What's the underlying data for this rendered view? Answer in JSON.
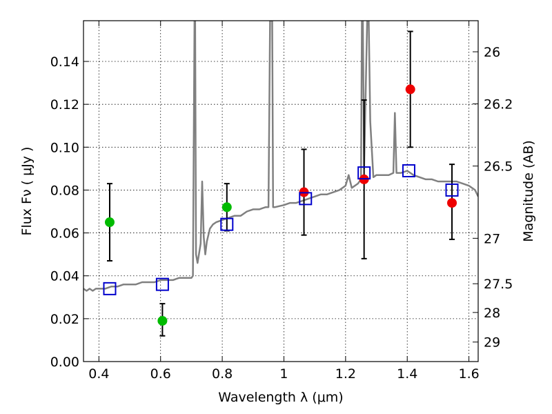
{
  "chart_data": {
    "type": "scatter",
    "title": "",
    "xlabel": "Wavelength  λ (μm)",
    "ylabel": "Flux  Fν  ( μJy )",
    "ylabel_right": "Magnitude (AB)",
    "xlim": [
      0.35,
      1.63
    ],
    "ylim": [
      0.0,
      0.159
    ],
    "grid": true,
    "xticks": [
      0.4,
      0.6,
      0.8,
      1.0,
      1.2,
      1.4,
      1.6
    ],
    "xtick_labels": [
      "0.4",
      "0.6",
      "0.8",
      "1",
      "1.2",
      "1.4",
      "1.6"
    ],
    "yticks": [
      0.0,
      0.02,
      0.04,
      0.06,
      0.08,
      0.1,
      0.12,
      0.14
    ],
    "ytick_labels": [
      "0.00",
      "0.02",
      "0.04",
      "0.06",
      "0.08",
      "0.10",
      "0.12",
      "0.14"
    ],
    "right_ticks": [
      {
        "label": "26",
        "flux": 0.1445
      },
      {
        "label": "26.2",
        "flux": 0.1202
      },
      {
        "label": "26.5",
        "flux": 0.0912
      },
      {
        "label": "27",
        "flux": 0.0575
      },
      {
        "label": "27.5",
        "flux": 0.0363
      },
      {
        "label": "28",
        "flux": 0.0229
      },
      {
        "label": "29",
        "flux": 0.0091
      }
    ],
    "series": [
      {
        "color": "#808080",
        "marker": "line",
        "x": [
          0.35,
          0.36,
          0.37,
          0.38,
          0.39,
          0.4,
          0.42,
          0.44,
          0.46,
          0.48,
          0.5,
          0.52,
          0.54,
          0.56,
          0.58,
          0.6,
          0.62,
          0.64,
          0.66,
          0.68,
          0.7,
          0.705,
          0.71,
          0.712,
          0.715,
          0.72,
          0.73,
          0.735,
          0.74,
          0.745,
          0.75,
          0.76,
          0.77,
          0.78,
          0.8,
          0.82,
          0.84,
          0.86,
          0.88,
          0.9,
          0.92,
          0.94,
          0.95,
          0.955,
          0.96,
          0.962,
          0.965,
          0.97,
          1.0,
          1.02,
          1.04,
          1.06,
          1.08,
          1.1,
          1.12,
          1.14,
          1.16,
          1.18,
          1.2,
          1.21,
          1.22,
          1.24,
          1.25,
          1.253,
          1.256,
          1.26,
          1.27,
          1.275,
          1.28,
          1.29,
          1.3,
          1.32,
          1.34,
          1.355,
          1.36,
          1.365,
          1.38,
          1.4,
          1.42,
          1.44,
          1.46,
          1.48,
          1.5,
          1.52,
          1.54,
          1.56,
          1.58,
          1.6,
          1.62,
          1.63
        ],
        "y": [
          0.034,
          0.033,
          0.034,
          0.033,
          0.034,
          0.034,
          0.034,
          0.035,
          0.035,
          0.036,
          0.036,
          0.036,
          0.037,
          0.037,
          0.037,
          0.038,
          0.038,
          0.038,
          0.039,
          0.039,
          0.039,
          0.04,
          0.159,
          0.159,
          0.05,
          0.046,
          0.055,
          0.084,
          0.058,
          0.05,
          0.056,
          0.062,
          0.064,
          0.065,
          0.066,
          0.067,
          0.068,
          0.068,
          0.07,
          0.071,
          0.071,
          0.072,
          0.072,
          0.159,
          0.159,
          0.159,
          0.072,
          0.072,
          0.073,
          0.074,
          0.074,
          0.075,
          0.076,
          0.077,
          0.078,
          0.078,
          0.079,
          0.08,
          0.082,
          0.087,
          0.081,
          0.083,
          0.085,
          0.159,
          0.159,
          0.09,
          0.159,
          0.159,
          0.112,
          0.086,
          0.087,
          0.087,
          0.087,
          0.088,
          0.116,
          0.088,
          0.088,
          0.089,
          0.087,
          0.086,
          0.085,
          0.085,
          0.084,
          0.084,
          0.084,
          0.084,
          0.083,
          0.082,
          0.08,
          0.077
        ]
      },
      {
        "color": "#00bb00",
        "marker": "circle",
        "x": [
          0.435,
          0.606,
          0.815
        ],
        "y": [
          0.065,
          0.019,
          0.072
        ],
        "yerr_low": [
          0.047,
          0.012,
          0.061
        ],
        "yerr_high": [
          0.083,
          0.027,
          0.083
        ]
      },
      {
        "color": "#ee0000",
        "marker": "circle",
        "x": [
          1.065,
          1.26,
          1.41,
          1.545
        ],
        "y": [
          0.079,
          0.085,
          0.127,
          0.074
        ],
        "yerr_low": [
          0.059,
          0.048,
          0.1,
          0.057
        ],
        "yerr_high": [
          0.099,
          0.122,
          0.154,
          0.092
        ]
      },
      {
        "color": "#0000cc",
        "marker": "square",
        "x": [
          0.435,
          0.606,
          0.815,
          1.07,
          1.26,
          1.405,
          1.545
        ],
        "y": [
          0.034,
          0.036,
          0.064,
          0.076,
          0.088,
          0.089,
          0.08
        ]
      }
    ]
  }
}
